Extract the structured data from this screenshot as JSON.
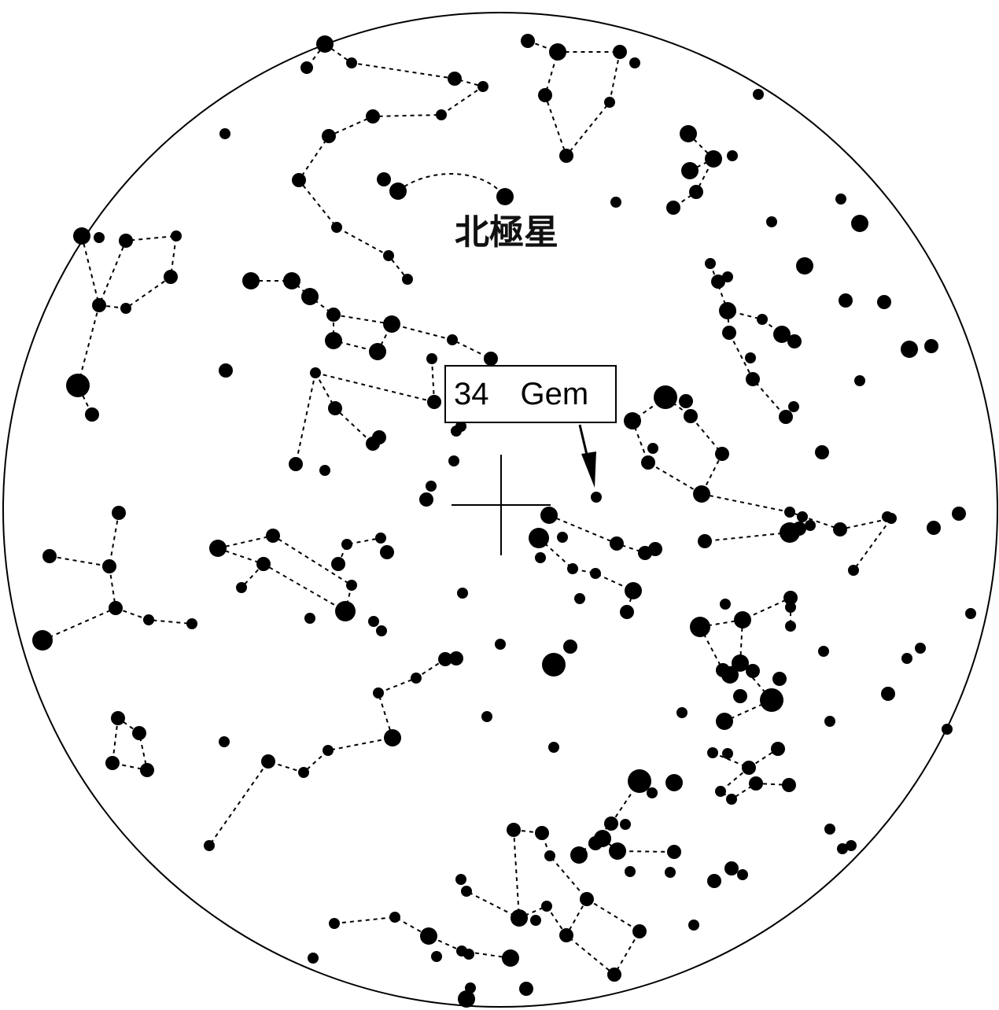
{
  "map": {
    "title": "北極星",
    "target_label": "34　Gem",
    "colors": {
      "background": "#ffffff",
      "ink": "#000000"
    }
  }
}
